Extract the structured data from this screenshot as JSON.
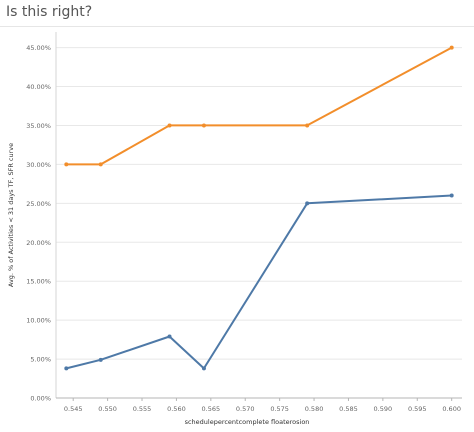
{
  "page": {
    "title": "Is this right?"
  },
  "chart_data": {
    "type": "line",
    "title": "Is this right?",
    "xlabel": "schedulepercentcomplete floaterosion",
    "ylabel": "Avg. % of Activities < 31 days TF, SFR curve",
    "x_ticks": [
      "0.545",
      "0.550",
      "0.555",
      "0.560",
      "0.565",
      "0.570",
      "0.575",
      "0.580",
      "0.585",
      "0.590",
      "0.595",
      "0.600"
    ],
    "y_ticks": [
      "0.00%",
      "5.00%",
      "10.00%",
      "15.00%",
      "20.00%",
      "25.00%",
      "30.00%",
      "35.00%",
      "40.00%",
      "45.00%"
    ],
    "xlim": [
      0.5425,
      0.6015
    ],
    "ylim": [
      0,
      47
    ],
    "grid": "horizontal",
    "series": [
      {
        "color": "#f28e2b",
        "x": [
          0.544,
          0.549,
          0.559,
          0.564,
          0.579,
          0.6
        ],
        "y": [
          30,
          30,
          35,
          35,
          35,
          45
        ]
      },
      {
        "color": "#4e79a7",
        "x": [
          0.544,
          0.549,
          0.559,
          0.564,
          0.579,
          0.6
        ],
        "y": [
          3.8,
          4.9,
          7.9,
          3.8,
          25,
          26
        ]
      }
    ]
  }
}
